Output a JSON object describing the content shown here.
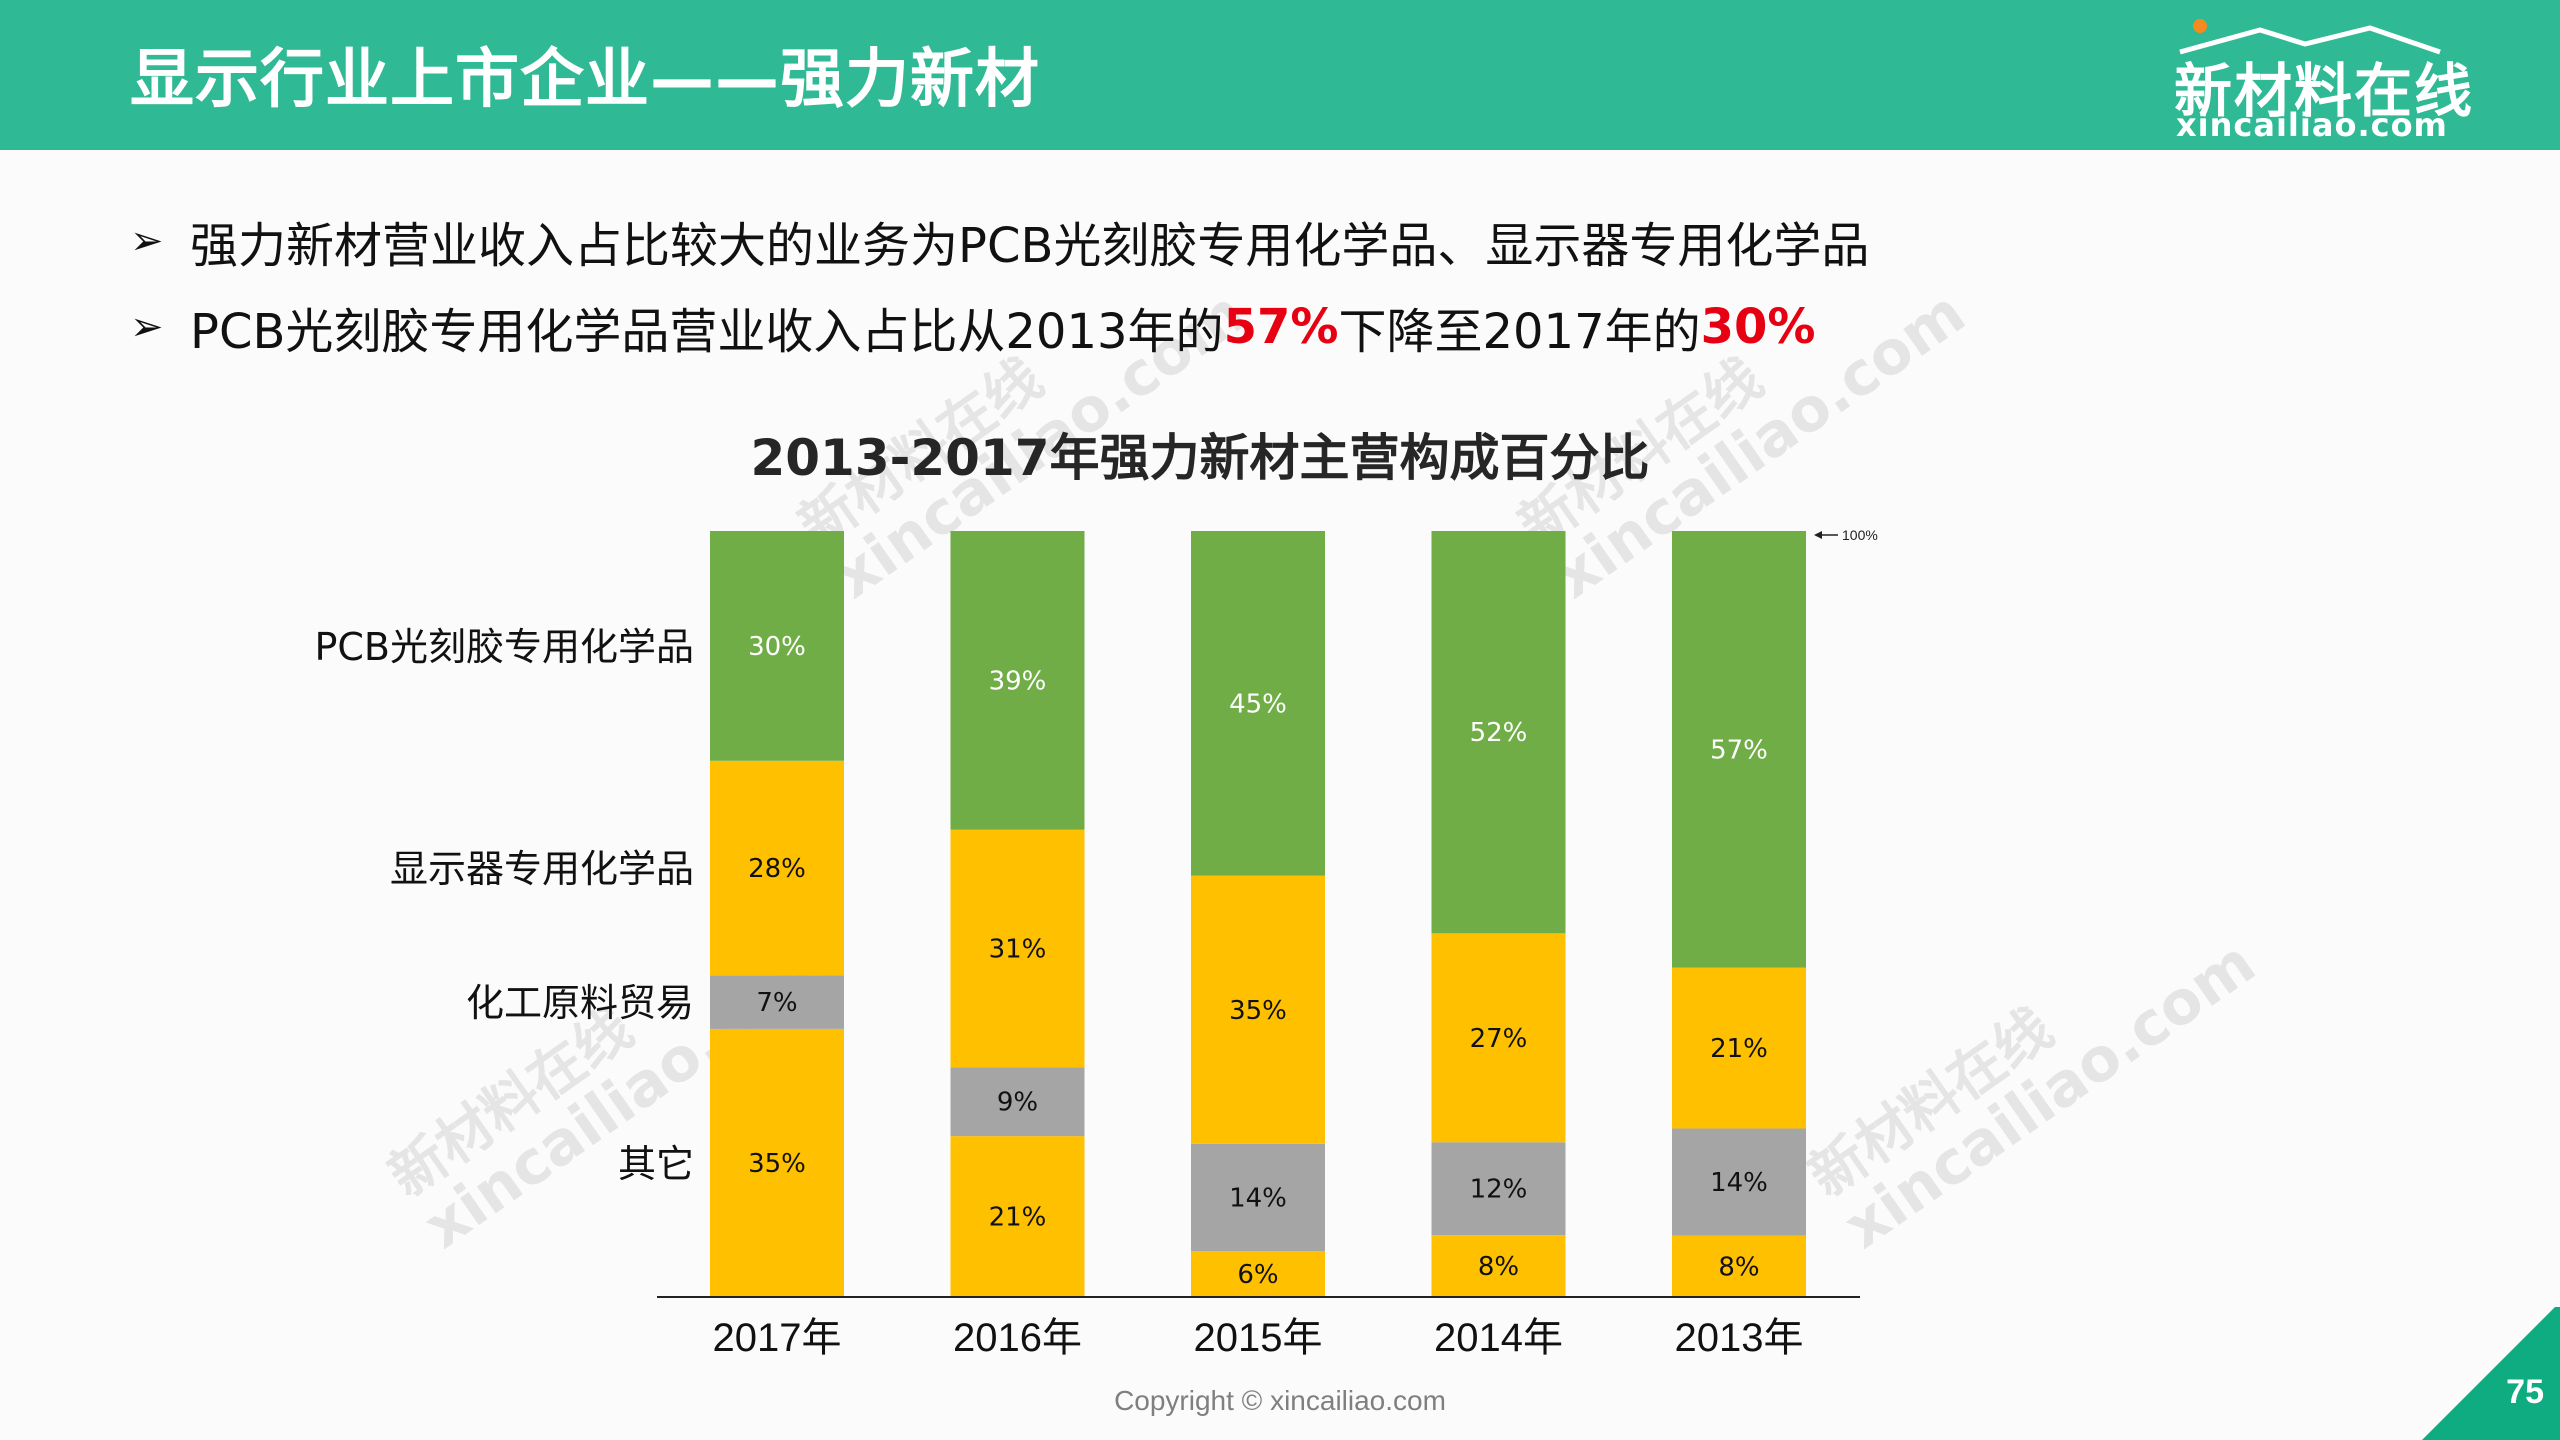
{
  "header": {
    "title": "显示行业上市企业——强力新材",
    "background_color": "#2fb994",
    "logo": {
      "cn": "新材料在线",
      "en": "xincailiao.com"
    }
  },
  "bullets": [
    {
      "parts": [
        {
          "text": "强力新材营业收入占比较大的业务为PCB光刻胶专用化学品、显示器专用化学品",
          "highlight": false
        }
      ]
    },
    {
      "parts": [
        {
          "text": "PCB光刻胶专用化学品营业收入占比从2013年的",
          "highlight": false
        },
        {
          "text": "57%",
          "highlight": true
        },
        {
          "text": "下降至2017年的",
          "highlight": false
        },
        {
          "text": "30%",
          "highlight": true
        }
      ]
    }
  ],
  "highlight_color": "#e60012",
  "chart_data": {
    "type": "bar",
    "stacked": "percent",
    "title": "2013-2017年强力新材主营构成百分比",
    "categories": [
      "2017年",
      "2016年",
      "2015年",
      "2014年",
      "2013年"
    ],
    "series": [
      {
        "name": "其它",
        "color": "#ffc000",
        "values": [
          35,
          21,
          6,
          8,
          8
        ],
        "label_color": "#111111"
      },
      {
        "name": "化工原料贸易",
        "color": "#a5a5a5",
        "values": [
          7,
          9,
          14,
          12,
          14
        ],
        "label_color": "#111111"
      },
      {
        "name": "显示器专用化学品",
        "color": "#ffc000",
        "values": [
          28,
          31,
          35,
          27,
          21
        ],
        "label_color": "#111111"
      },
      {
        "name": "PCB光刻胶专用化学品",
        "color": "#70ad47",
        "values": [
          30,
          39,
          45,
          52,
          57
        ],
        "label_color": "#ffffff"
      }
    ],
    "legend_placement": "left (labels beside first bar)",
    "legend_order": [
      "PCB光刻胶专用化学品",
      "显示器专用化学品",
      "化工原料贸易",
      "其它"
    ],
    "ylim": [
      0,
      100
    ],
    "top_marker": "100%",
    "grid": false,
    "xlabel": "",
    "ylabel": ""
  },
  "watermark": {
    "cn": "新材料在线",
    "en": "xincailiao.com"
  },
  "footer": {
    "copyright": "Copyright © xincailiao.com",
    "page_number": "75"
  }
}
